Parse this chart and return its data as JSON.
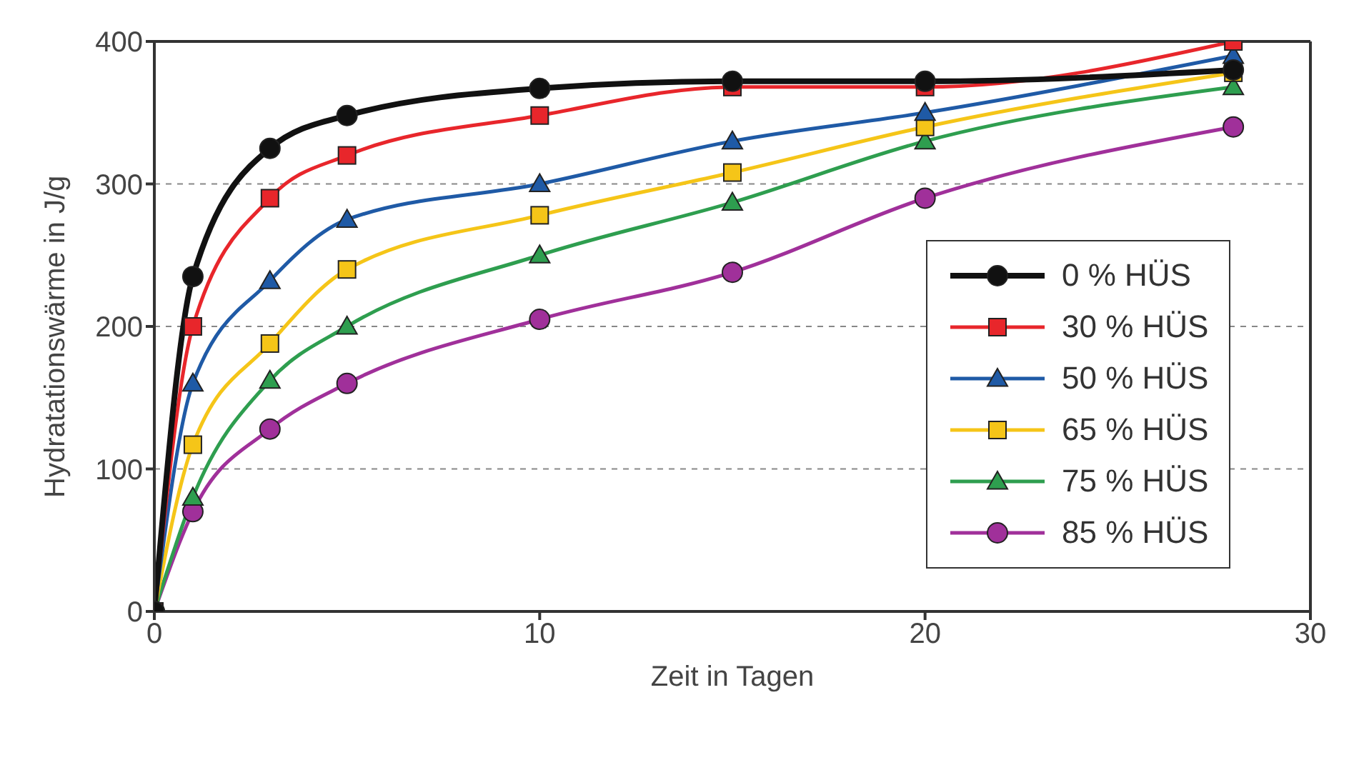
{
  "chart_data": {
    "type": "line",
    "xlabel": "Zeit in Tagen",
    "ylabel": "Hydratationswärme in J/g",
    "x": [
      0,
      1,
      3,
      5,
      10,
      15,
      20,
      28
    ],
    "series": [
      {
        "name": "0 % HÜS",
        "color": "#111111",
        "marker": "circle",
        "values": [
          0,
          235,
          325,
          348,
          367,
          372,
          372,
          380
        ]
      },
      {
        "name": "30 % HÜS",
        "color": "#e8262b",
        "marker": "square",
        "values": [
          0,
          200,
          290,
          320,
          348,
          368,
          368,
          400
        ]
      },
      {
        "name": "50 % HÜS",
        "color": "#1f5aa6",
        "marker": "triangle",
        "values": [
          0,
          160,
          232,
          275,
          300,
          330,
          350,
          390
        ]
      },
      {
        "name": "65 % HÜS",
        "color": "#f5c518",
        "marker": "square",
        "values": [
          0,
          117,
          188,
          240,
          278,
          308,
          340,
          378
        ]
      },
      {
        "name": "75 % HÜS",
        "color": "#2e9e4f",
        "marker": "triangle",
        "values": [
          0,
          80,
          162,
          200,
          250,
          287,
          330,
          368
        ]
      },
      {
        "name": "85 % HÜS",
        "color": "#a0309a",
        "marker": "circle",
        "values": [
          0,
          70,
          128,
          160,
          205,
          238,
          290,
          340
        ]
      }
    ],
    "xlim": [
      0,
      30
    ],
    "xticks": [
      0,
      10,
      20,
      30
    ],
    "ylim": [
      0,
      400
    ],
    "yticks": [
      0,
      100,
      200,
      300,
      400
    ],
    "grid": "y",
    "legend": "bottom right",
    "line_style": "solid"
  }
}
